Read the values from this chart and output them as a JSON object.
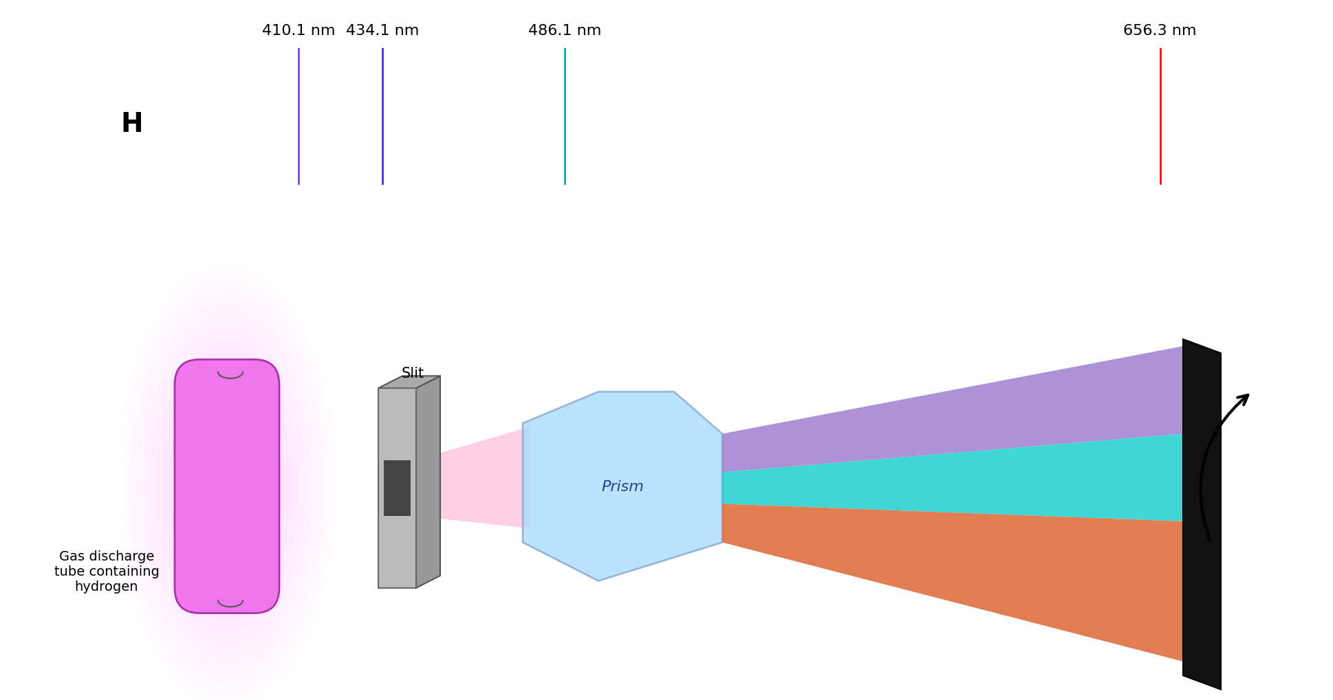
{
  "spectrum_lines": [
    {
      "wavelength": 410.1,
      "label": "410.1 nm",
      "color": "#8844dd"
    },
    {
      "wavelength": 434.1,
      "label": "434.1 nm",
      "color": "#4433cc"
    },
    {
      "wavelength": 486.1,
      "label": "486.1 nm",
      "color": "#00aaaa"
    },
    {
      "wavelength": 656.3,
      "label": "656.3 nm",
      "color": "#ee1111"
    }
  ],
  "spectrum_bg": "#000000",
  "spectrum_label": "H",
  "wl_min": 380,
  "wl_max": 700,
  "background_color": "#ffffff",
  "label_fontsize": 16,
  "spectrum_label_fontsize": 28,
  "tube_color": "#ee77ee",
  "tube_edge": "#aa33aa",
  "tube_glow": "#ffbbff",
  "slit_plate_color": "#bbbbbb",
  "slit_plate_edge": "#666666",
  "slit_dark": "#444444",
  "beam_pink": "#ffaacc",
  "prism_color": "#aaddff",
  "prism_edge": "#88aacc",
  "violet_beam": "#9977cc",
  "cyan_beam": "#11cccc",
  "orange_beam": "#dd6633",
  "screen_color": "#111111"
}
